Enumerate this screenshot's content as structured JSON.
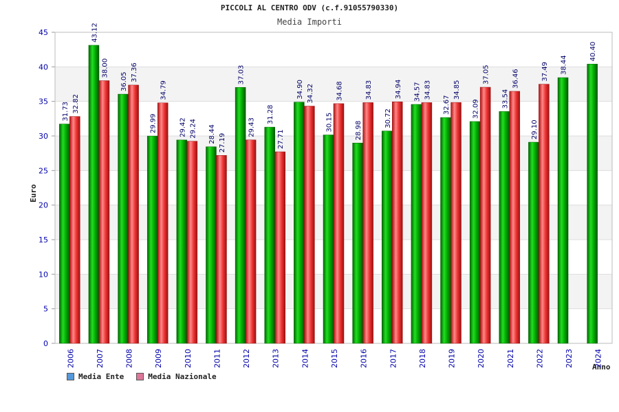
{
  "chart_data": {
    "type": "bar",
    "title": "PICCOLI AL CENTRO ODV (c.f.91055790330)",
    "subtitle": "Media Importi",
    "xlabel": "Anno",
    "ylabel": "Euro",
    "ylim": [
      0,
      45
    ],
    "yticks": [
      0,
      5,
      10,
      15,
      20,
      25,
      30,
      35,
      40,
      45
    ],
    "grid": true,
    "legend_position": "bottom-left",
    "categories": [
      "2006",
      "2007",
      "2008",
      "2009",
      "2010",
      "2011",
      "2012",
      "2013",
      "2014",
      "2015",
      "2016",
      "2017",
      "2018",
      "2019",
      "2020",
      "2021",
      "2022",
      "2023",
      "2024"
    ],
    "series": [
      {
        "name": "Media Ente",
        "color": "#00aa00",
        "legend_color": "#5599dd",
        "values": [
          31.73,
          43.12,
          36.05,
          29.99,
          29.42,
          28.44,
          37.03,
          31.28,
          34.9,
          30.15,
          28.98,
          30.72,
          34.57,
          32.67,
          32.09,
          33.54,
          29.1,
          38.44,
          40.4
        ],
        "labels": [
          "31.73",
          "43.12",
          "36.05",
          "29.99",
          "29.42",
          "28.44",
          "37.03",
          "31.28",
          "34.90",
          "30.15",
          "28.98",
          "30.72",
          "34.57",
          "32.67",
          "32.09",
          "33.54",
          "29.10",
          "38.44",
          "40.40"
        ]
      },
      {
        "name": "Media Nazionale",
        "color": "#dd2222",
        "legend_color": "#dd7799",
        "values": [
          32.82,
          38.0,
          37.36,
          34.79,
          29.24,
          27.19,
          29.43,
          27.71,
          34.32,
          34.68,
          34.83,
          34.94,
          34.83,
          34.85,
          37.05,
          36.46,
          37.49,
          null,
          null
        ],
        "labels": [
          "32.82",
          "38.00",
          "37.36",
          "34.79",
          "29.24",
          "27.19",
          "29.43",
          "27.71",
          "34.32",
          "34.68",
          "34.83",
          "34.94",
          "34.83",
          "34.85",
          "37.05",
          "36.46",
          "37.49",
          "",
          ""
        ]
      }
    ]
  }
}
